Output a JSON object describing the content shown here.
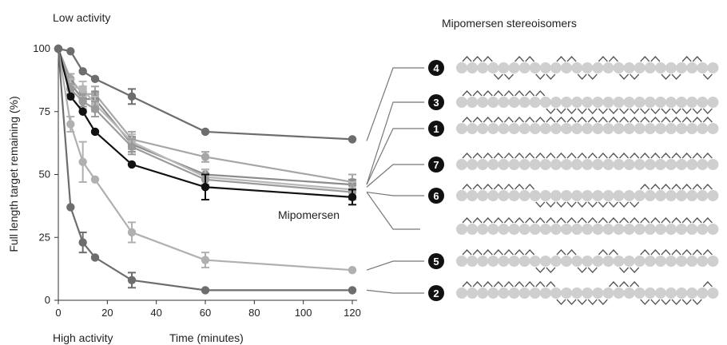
{
  "chart_data": {
    "type": "line",
    "annotations": {
      "top_label": "Low activity",
      "bottom_label": "High activity",
      "mipomersen_label": "Mipomersen",
      "panel_title": "Mipomersen stereoisomers"
    },
    "xlabel": "Time (minutes)",
    "ylabel": "Full length target remaining (%)",
    "xlim": [
      0,
      120
    ],
    "ylim": [
      0,
      100
    ],
    "xticks": [
      0,
      20,
      40,
      60,
      80,
      100,
      120
    ],
    "yticks": [
      0,
      25,
      50,
      75,
      100
    ],
    "x": [
      0,
      5,
      10,
      15,
      30,
      60,
      120
    ],
    "grid": false,
    "series": [
      {
        "name": "4",
        "color": "#6d6d6d",
        "values": [
          100,
          99,
          91,
          88,
          81,
          67,
          64
        ],
        "err": [
          0,
          0,
          0,
          0,
          3,
          0,
          0
        ]
      },
      {
        "name": "3",
        "color": "#a6a6a6",
        "values": [
          100,
          88,
          82,
          82,
          64,
          57,
          47
        ],
        "err": [
          0,
          2,
          3,
          3,
          3,
          2,
          3
        ]
      },
      {
        "name": "1",
        "color": "#8c8c8c",
        "values": [
          100,
          86,
          80,
          80,
          62,
          50,
          46
        ],
        "err": [
          0,
          2,
          3,
          3,
          3,
          2,
          2
        ]
      },
      {
        "name": "7",
        "color": "#b8b8b8",
        "values": [
          100,
          85,
          84,
          78,
          63,
          49,
          44
        ],
        "err": [
          0,
          3,
          3,
          3,
          3,
          3,
          3
        ]
      },
      {
        "name": "6",
        "color": "#9a9a9a",
        "values": [
          100,
          84,
          79,
          76,
          61,
          48,
          43
        ],
        "err": [
          0,
          2,
          3,
          3,
          3,
          2,
          3
        ]
      },
      {
        "name": "Mipomersen",
        "color": "#111111",
        "values": [
          100,
          81,
          75,
          67,
          54,
          45,
          41
        ],
        "err": [
          0,
          0,
          0,
          0,
          0,
          5,
          3
        ]
      },
      {
        "name": "5",
        "color": "#b0b0b0",
        "values": [
          100,
          70,
          55,
          48,
          27,
          16,
          12
        ],
        "err": [
          0,
          3,
          8,
          0,
          4,
          3,
          0
        ]
      },
      {
        "name": "2",
        "color": "#6d6d6d",
        "values": [
          100,
          37,
          23,
          17,
          8,
          4,
          4
        ],
        "err": [
          0,
          0,
          4,
          0,
          3,
          0,
          0
        ]
      }
    ],
    "stereoisomers": [
      {
        "label": "4",
        "pattern": "UUUDDUUDDUUDDUUDDUUDDUUDDUUDDUUD"
      },
      {
        "label": "3",
        "pattern": "UUUUUUUUDDDDDDDDDDDDDDDDDDDDUUUUUU"
      },
      {
        "label": "1",
        "pattern": "UUUUUUUUUUUUUUUUUUUUUUUUUUUUUUUUUU"
      },
      {
        "label": "7",
        "pattern": "UUUUUUUUUUUUUUUUUUUUUUUUUUUUUUUUUU"
      },
      {
        "label": "6",
        "pattern": "UUUUUUUDDDDDDDDDDUUUUUUUUUUUUUUUUU"
      },
      {
        "label": "",
        "pattern": "UUUUUUUUUUUUUUUUUUUUUUUUUUUUUUUUUUUU"
      },
      {
        "label": "5",
        "pattern": "UUUUUUUDDUUDDUUDDUUUUUUUUUUUUUUUUU"
      },
      {
        "label": "2",
        "pattern": "UUUUUUUUUDDDDDUUUDDDDDDUUUUUUUUUUU"
      }
    ],
    "bead_color": "#cfcfcf",
    "stroke_color": "#555555"
  }
}
